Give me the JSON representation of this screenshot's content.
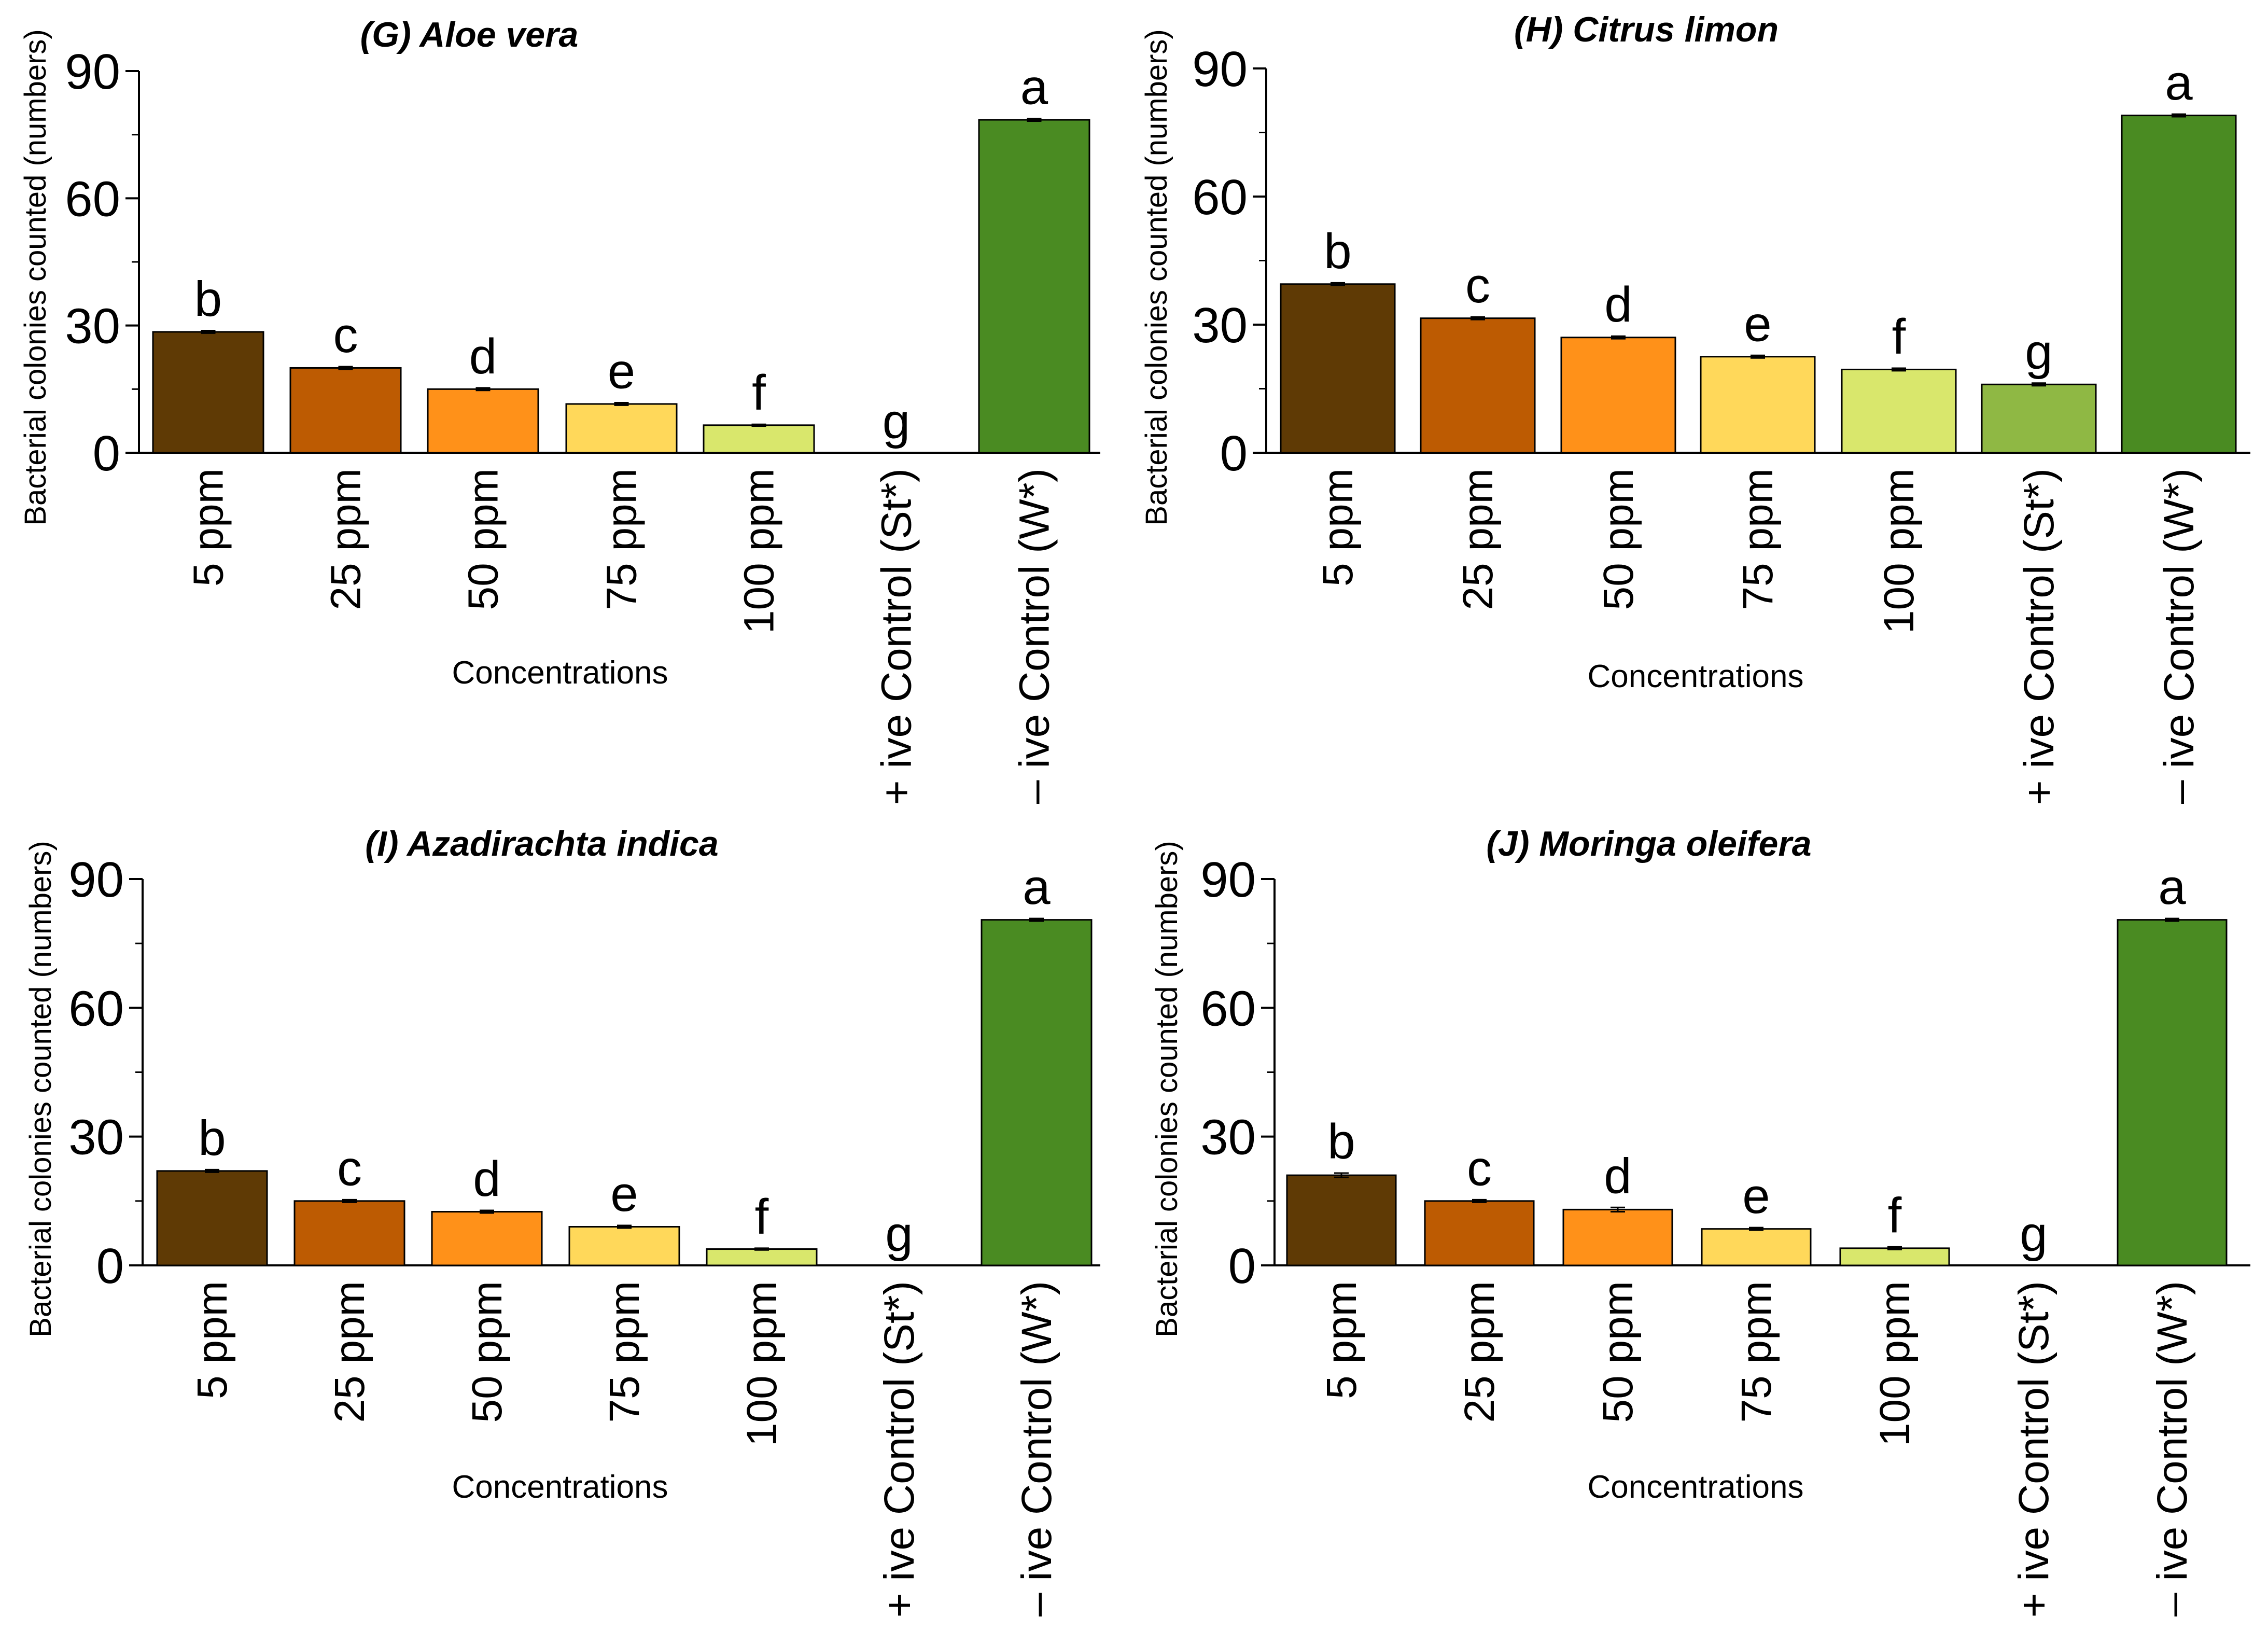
{
  "chart_data": [
    {
      "type": "bar",
      "title": "(G) Aloe vera",
      "xlabel": "Concentrations",
      "ylabel": "Bacterial colonies counted (numbers)",
      "ylim": [
        0,
        90
      ],
      "yticks": [
        0,
        30,
        60,
        90
      ],
      "categories": [
        "5 ppm",
        "25 ppm",
        "50 ppm",
        "75 ppm",
        "100 ppm",
        "+ ive Control (St*)",
        "– ive Control (W*)"
      ],
      "values": [
        28.5,
        20.0,
        15.0,
        11.5,
        6.5,
        0,
        78.5
      ],
      "errors": [
        0.3,
        0.3,
        0.3,
        0.3,
        0.2,
        0,
        0.3
      ],
      "letters": [
        "b",
        "c",
        "d",
        "e",
        "f",
        "g",
        "a"
      ]
    },
    {
      "type": "bar",
      "title": "(H) Citrus limon",
      "xlabel": "Concentrations",
      "ylabel": "Bacterial colonies counted (numbers)",
      "ylim": [
        0,
        90
      ],
      "yticks": [
        0,
        30,
        60,
        90
      ],
      "categories": [
        "5 ppm",
        "25 ppm",
        "50 ppm",
        "75 ppm",
        "100 ppm",
        "+ ive Control (St*)",
        "– ive Control (W*)"
      ],
      "values": [
        39.5,
        31.5,
        27.0,
        22.5,
        19.5,
        16.0,
        79.0
      ],
      "errors": [
        0.3,
        0.3,
        0.3,
        0.3,
        0.3,
        0.3,
        0.3
      ],
      "letters": [
        "b",
        "c",
        "d",
        "e",
        "f",
        "g",
        "a"
      ]
    },
    {
      "type": "bar",
      "title": "(I) Azadirachta indica",
      "xlabel": "Concentrations",
      "ylabel": "Bacterial colonies counted (numbers)",
      "ylim": [
        0,
        90
      ],
      "yticks": [
        0,
        30,
        60,
        90
      ],
      "categories": [
        "5 ppm",
        "25 ppm",
        "50 ppm",
        "75 ppm",
        "100 ppm",
        "+ ive Control (St*)",
        "– ive Control (W*)"
      ],
      "values": [
        22.0,
        15.0,
        12.5,
        9.0,
        3.8,
        0,
        80.5
      ],
      "errors": [
        0.3,
        0.3,
        0.3,
        0.3,
        0.2,
        0,
        0.3
      ],
      "letters": [
        "b",
        "c",
        "d",
        "e",
        "f",
        "g",
        "a"
      ]
    },
    {
      "type": "bar",
      "title": "(J) Moringa oleifera",
      "xlabel": "Concentrations",
      "ylabel": "Bacterial colonies counted (numbers)",
      "ylim": [
        0,
        90
      ],
      "yticks": [
        0,
        30,
        60,
        90
      ],
      "categories": [
        "5 ppm",
        "25 ppm",
        "50 ppm",
        "75 ppm",
        "100 ppm",
        "+ ive Control (St*)",
        "– ive Control (W*)"
      ],
      "values": [
        21.0,
        15.0,
        13.0,
        8.5,
        4.0,
        0,
        80.5
      ],
      "errors": [
        0.5,
        0.3,
        0.5,
        0.3,
        0.3,
        0,
        0.3
      ],
      "letters": [
        "b",
        "c",
        "d",
        "e",
        "f",
        "g",
        "a"
      ]
    }
  ],
  "colors": {
    "bars": [
      "#5f3a05",
      "#bd5b02",
      "#ff9119",
      "#ffd85a",
      "#d9e76c",
      "#8fb844",
      "#4a8b22"
    ],
    "stroke": "#000000"
  }
}
